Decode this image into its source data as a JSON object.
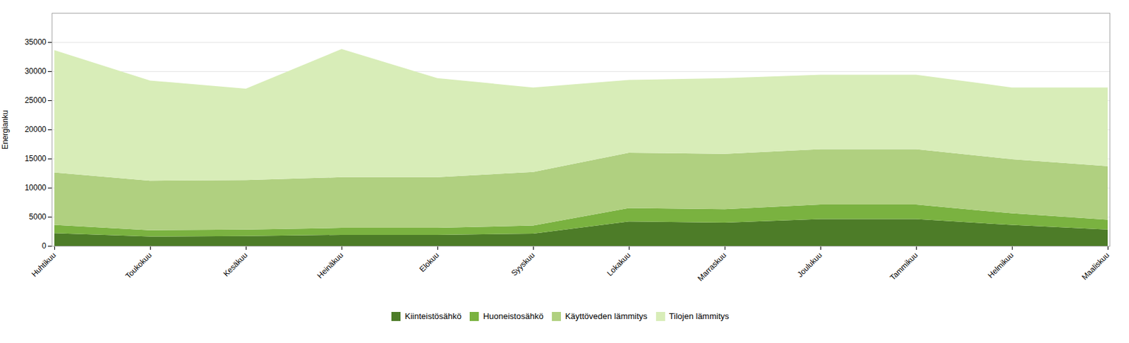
{
  "chart_data": {
    "type": "area",
    "stacked": true,
    "categories": [
      "Huhtikuu",
      "Toukokuu",
      "Kesäkuu",
      "Heinäkuu",
      "Elokuu",
      "Syyskuu",
      "Lokakuu",
      "Marraskuu",
      "Joulukuu",
      "Tammikuu",
      "Helmikuu",
      "Maaliskuu"
    ],
    "series": [
      {
        "name": "Kiinteistösähkö",
        "color": "#4d7c28",
        "values": [
          2200,
          1600,
          1700,
          1900,
          1900,
          2100,
          4200,
          4000,
          4600,
          4600,
          3600,
          2800
        ]
      },
      {
        "name": "Huoneistosähkö",
        "color": "#7ab240",
        "values": [
          1400,
          1100,
          1100,
          1200,
          1200,
          1400,
          2300,
          2300,
          2500,
          2500,
          2000,
          1700
        ]
      },
      {
        "name": "Käyttöveden lämmitys",
        "color": "#b0d080",
        "values": [
          9000,
          8500,
          8500,
          8700,
          8700,
          9200,
          9500,
          9500,
          9500,
          9500,
          9300,
          9200
        ]
      },
      {
        "name": "Tilojen lämmitys",
        "color": "#d8edb8",
        "values": [
          21000,
          17200,
          15700,
          22000,
          17000,
          14500,
          12500,
          13000,
          12800,
          12800,
          12300,
          13500
        ]
      }
    ],
    "ylabel": "Energianku",
    "ylim": [
      0,
      40000
    ],
    "yticks": [
      0,
      5000,
      10000,
      15000,
      20000,
      25000,
      30000,
      35000
    ],
    "grid": true,
    "legend": "bottom"
  }
}
